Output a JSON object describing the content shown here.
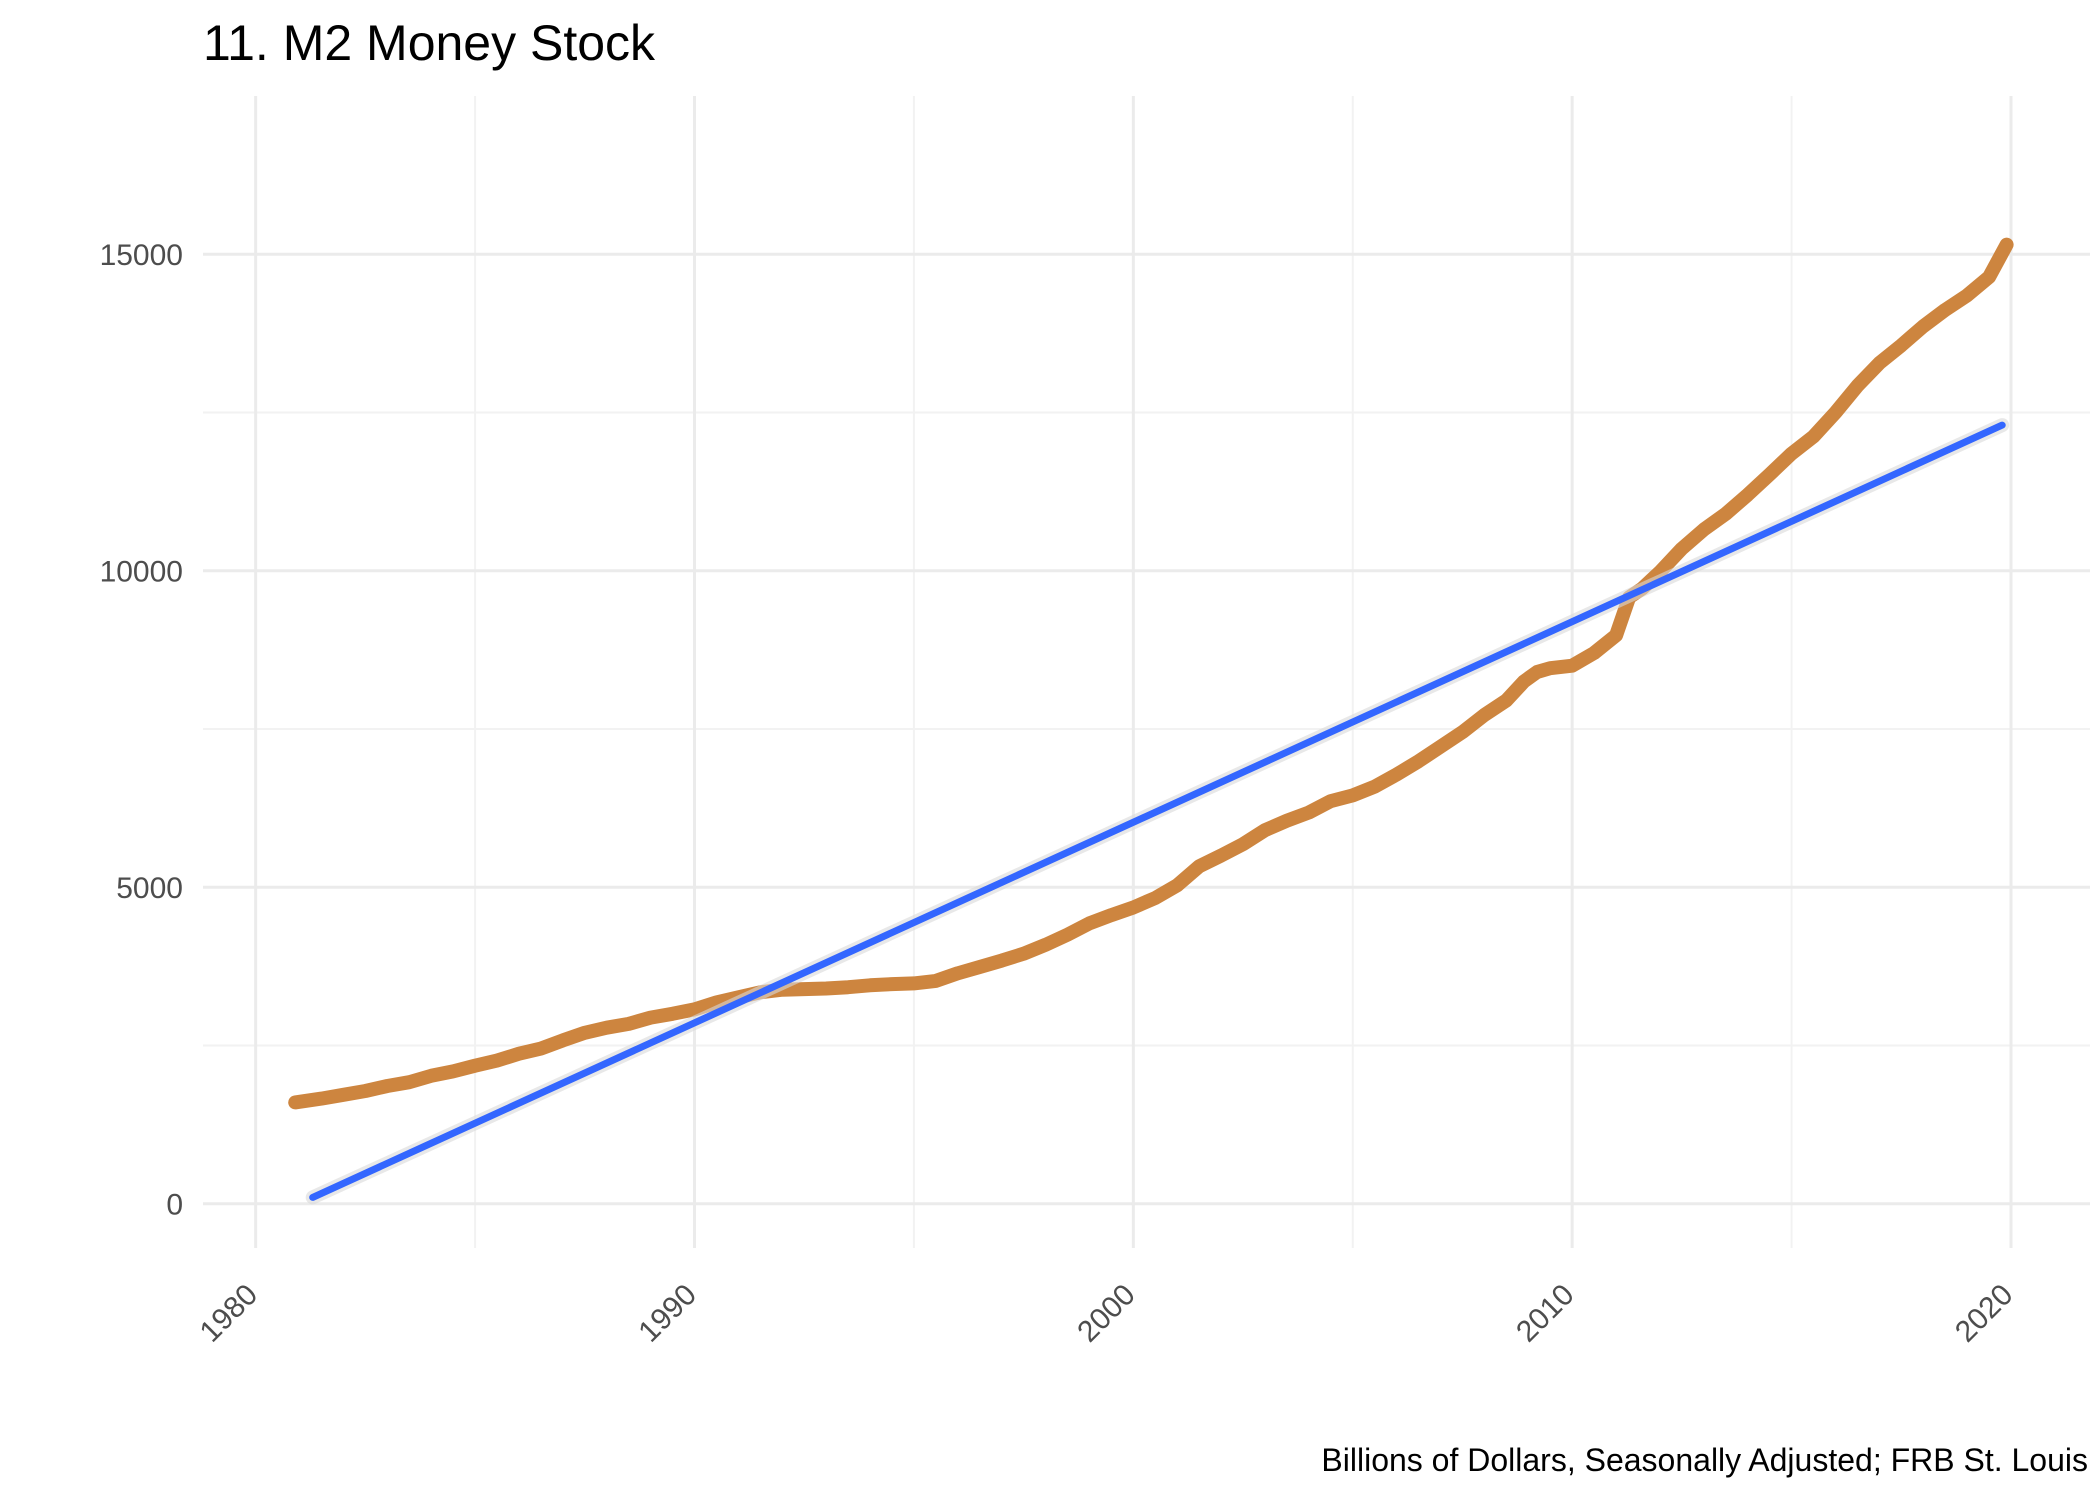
{
  "chart_data": {
    "type": "line",
    "title": "11. M2 Money Stock",
    "caption": "Billions of Dollars, Seasonally Adjusted; FRB St. Louis",
    "xlabel": "",
    "ylabel": "",
    "xlim": [
      1978.8,
      2021.8
    ],
    "ylim": [
      -700,
      17500
    ],
    "x_ticks": [
      1980,
      1990,
      2000,
      2010,
      2020
    ],
    "x_tick_labels": [
      "1980",
      "1990",
      "2000",
      "2010",
      "2020"
    ],
    "y_ticks": [
      0,
      5000,
      10000,
      15000
    ],
    "y_tick_labels": [
      "0",
      "5000",
      "10000",
      "15000"
    ],
    "grid": true,
    "legend": "none",
    "colors": {
      "m2": "#CD853F",
      "trend": "#3366FF",
      "grid_major": "#EBEBEB",
      "grid_minor": "#F2F2F2"
    },
    "series": [
      {
        "key": "m2",
        "x": [
          1980.9,
          1981.5,
          1982.0,
          1982.5,
          1983.0,
          1983.5,
          1984.0,
          1984.5,
          1985.0,
          1985.5,
          1986.0,
          1986.5,
          1987.0,
          1987.5,
          1988.0,
          1988.5,
          1989.0,
          1989.5,
          1990.0,
          1990.5,
          1991.0,
          1991.5,
          1992.0,
          1992.5,
          1993.0,
          1993.5,
          1994.0,
          1994.5,
          1995.0,
          1995.5,
          1996.0,
          1996.5,
          1997.0,
          1997.5,
          1998.0,
          1998.5,
          1999.0,
          1999.5,
          2000.0,
          2000.5,
          2001.0,
          2001.5,
          2002.0,
          2002.5,
          2003.0,
          2003.5,
          2004.0,
          2004.5,
          2005.0,
          2005.5,
          2006.0,
          2006.5,
          2007.0,
          2007.5,
          2008.0,
          2008.5,
          2008.9,
          2009.2,
          2009.5,
          2010.0,
          2010.5,
          2011.0,
          2011.3,
          2011.6,
          2012.0,
          2012.5,
          2013.0,
          2013.5,
          2014.0,
          2014.5,
          2015.0,
          2015.5,
          2016.0,
          2016.5,
          2017.0,
          2017.5,
          2018.0,
          2018.5,
          2019.0,
          2019.5,
          2019.9
        ],
        "y": [
          1600,
          1660,
          1720,
          1780,
          1860,
          1920,
          2020,
          2090,
          2180,
          2260,
          2370,
          2450,
          2580,
          2700,
          2780,
          2840,
          2940,
          3000,
          3070,
          3180,
          3260,
          3340,
          3380,
          3390,
          3400,
          3420,
          3450,
          3470,
          3480,
          3520,
          3640,
          3740,
          3840,
          3950,
          4090,
          4250,
          4430,
          4560,
          4680,
          4830,
          5030,
          5330,
          5500,
          5680,
          5900,
          6050,
          6180,
          6360,
          6450,
          6590,
          6780,
          6990,
          7220,
          7450,
          7720,
          7950,
          8250,
          8400,
          8460,
          8500,
          8700,
          8980,
          9580,
          9720,
          9980,
          10350,
          10650,
          10900,
          11200,
          11520,
          11850,
          12120,
          12500,
          12920,
          13280,
          13560,
          13860,
          14120,
          14350,
          14640,
          15150
        ]
      },
      {
        "key": "trend",
        "x": [
          1981.3,
          2019.8
        ],
        "y": [
          100,
          12300
        ]
      }
    ]
  }
}
